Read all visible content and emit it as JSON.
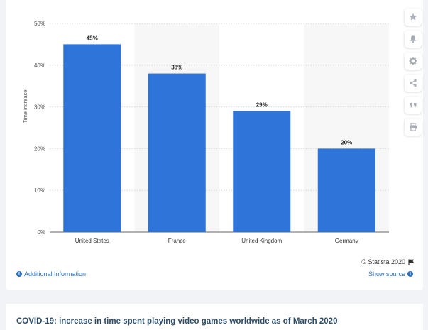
{
  "chart_data": {
    "type": "bar",
    "categories": [
      "United States",
      "France",
      "United Kingdom",
      "Germany"
    ],
    "values": [
      45,
      38,
      29,
      20
    ],
    "value_labels": [
      "45%",
      "38%",
      "29%",
      "20%"
    ],
    "ylabel": "Time increase",
    "ylim": [
      0,
      50
    ],
    "yticks": [
      0,
      10,
      20,
      30,
      40,
      50
    ],
    "ytick_labels": [
      "0%",
      "10%",
      "20%",
      "30%",
      "40%",
      "50%"
    ],
    "grid": true,
    "bar_color": "#2f74d9",
    "alt_band_color": "#f7f7f7"
  },
  "sidebar": {
    "buttons": [
      {
        "name": "star-icon"
      },
      {
        "name": "bell-icon"
      },
      {
        "name": "gear-icon"
      },
      {
        "name": "share-icon"
      },
      {
        "name": "quote-icon"
      },
      {
        "name": "print-icon"
      }
    ]
  },
  "footer": {
    "credit": "© Statista 2020",
    "additional_info": "Additional Information",
    "show_source": "Show source"
  },
  "title": "COVID-19: increase in time spent playing video games worldwide as of March 2020",
  "colors": {
    "bar": "#2f74d9",
    "link": "#2a6fbf",
    "title": "#2d4d67"
  }
}
